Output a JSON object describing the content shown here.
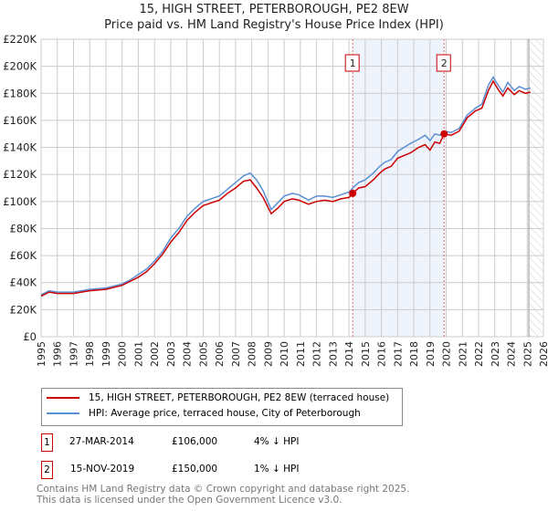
{
  "title_line1": "15, HIGH STREET, PETERBOROUGH, PE2 8EW",
  "title_line2": "Price paid vs. HM Land Registry's House Price Index (HPI)",
  "colors": {
    "property": "#cc0000",
    "hpi": "#5b8fd4",
    "shade": "#eef3fc"
  },
  "chart_data": {
    "type": "line",
    "title": "Price paid vs. HM Land Registry's House Price Index (HPI)",
    "xlim": [
      1995,
      2026
    ],
    "ylim": [
      0,
      220000
    ],
    "x_ticks": [
      "1995",
      "1996",
      "1997",
      "1998",
      "1999",
      "2000",
      "2001",
      "2002",
      "2003",
      "2004",
      "2005",
      "2006",
      "2007",
      "2008",
      "2009",
      "2010",
      "2011",
      "2012",
      "2013",
      "2014",
      "2015",
      "2016",
      "2017",
      "2018",
      "2019",
      "2020",
      "2021",
      "2022",
      "2023",
      "2024",
      "2025",
      "2026"
    ],
    "y_ticks": [
      {
        "v": 0,
        "label": "£0"
      },
      {
        "v": 20000,
        "label": "£20K"
      },
      {
        "v": 40000,
        "label": "£40K"
      },
      {
        "v": 60000,
        "label": "£60K"
      },
      {
        "v": 80000,
        "label": "£80K"
      },
      {
        "v": 100000,
        "label": "£100K"
      },
      {
        "v": 120000,
        "label": "£120K"
      },
      {
        "v": 140000,
        "label": "£140K"
      },
      {
        "v": 160000,
        "label": "£160K"
      },
      {
        "v": 180000,
        "label": "£180K"
      },
      {
        "v": 200000,
        "label": "£200K"
      },
      {
        "v": 220000,
        "label": "£220K"
      }
    ],
    "grid": true,
    "series": [
      {
        "name": "15, HIGH STREET, PETERBOROUGH, PE2 8EW (terraced house)",
        "color": "#cc0000",
        "x": [
          1995,
          1995.5,
          1996,
          1997,
          1998,
          1999,
          2000,
          2000.5,
          2001,
          2001.5,
          2002,
          2002.5,
          2003,
          2003.5,
          2004,
          2004.5,
          2005,
          2006,
          2006.5,
          2007,
          2007.5,
          2007.9,
          2008.3,
          2008.7,
          2009.2,
          2009.6,
          2010,
          2010.5,
          2010.9,
          2011.5,
          2012,
          2012.5,
          2013,
          2013.5,
          2014,
          2014.23,
          2014.6,
          2015,
          2015.5,
          2015.9,
          2016.2,
          2016.6,
          2017,
          2017.4,
          2017.8,
          2018.3,
          2018.7,
          2019,
          2019.3,
          2019.6,
          2019.87,
          2020.3,
          2020.8,
          2021.3,
          2021.8,
          2022.2,
          2022.6,
          2022.9,
          2023.2,
          2023.5,
          2023.8,
          2024.2,
          2024.5,
          2024.9,
          2025.2
        ],
        "y": [
          30000,
          33000,
          32000,
          32000,
          34000,
          35000,
          38000,
          41000,
          44000,
          48000,
          54000,
          61000,
          70000,
          77000,
          86000,
          92000,
          97000,
          101000,
          106000,
          110000,
          115000,
          116000,
          110000,
          103000,
          91000,
          95000,
          100000,
          102000,
          101000,
          98000,
          100000,
          101000,
          100000,
          102000,
          103000,
          106000,
          110000,
          111000,
          116000,
          121000,
          124000,
          126000,
          132000,
          134000,
          136000,
          140000,
          142000,
          138000,
          144000,
          143000,
          150000,
          149000,
          152000,
          162000,
          167000,
          169000,
          182000,
          189000,
          183000,
          178000,
          184000,
          179000,
          182000,
          180000,
          181000
        ]
      },
      {
        "name": "HPI: Average price, terraced house, City of Peterborough",
        "color": "#5b8fd4",
        "x": [
          1995,
          1995.5,
          1996,
          1997,
          1998,
          1999,
          2000,
          2000.5,
          2001,
          2001.5,
          2002,
          2002.5,
          2003,
          2003.5,
          2004,
          2004.5,
          2005,
          2006,
          2006.5,
          2007,
          2007.5,
          2007.9,
          2008.3,
          2008.7,
          2009.2,
          2009.6,
          2010,
          2010.5,
          2010.9,
          2011.5,
          2012,
          2012.5,
          2013,
          2013.5,
          2014,
          2014.23,
          2014.6,
          2015,
          2015.5,
          2015.9,
          2016.2,
          2016.6,
          2017,
          2017.4,
          2017.8,
          2018.3,
          2018.7,
          2019,
          2019.3,
          2019.6,
          2019.87,
          2020.3,
          2020.8,
          2021.3,
          2021.8,
          2022.2,
          2022.6,
          2022.9,
          2023.2,
          2023.5,
          2023.8,
          2024.2,
          2024.5,
          2024.9,
          2025.2
        ],
        "y": [
          31000,
          34000,
          33000,
          33000,
          35000,
          36000,
          39000,
          42000,
          46000,
          50000,
          56000,
          63000,
          73000,
          80000,
          89000,
          95000,
          100000,
          104000,
          109000,
          114000,
          119000,
          121000,
          116000,
          108000,
          94000,
          99000,
          104000,
          106000,
          105000,
          101000,
          104000,
          104000,
          103000,
          105000,
          107000,
          110000,
          114000,
          116000,
          121000,
          126000,
          129000,
          131000,
          137000,
          140000,
          143000,
          146000,
          149000,
          145000,
          150000,
          149000,
          152000,
          151000,
          154000,
          164000,
          169000,
          172000,
          186000,
          192000,
          186000,
          181000,
          188000,
          182000,
          185000,
          183000,
          184000
        ]
      }
    ],
    "transactions": [
      {
        "label": "1",
        "x": 2014.23,
        "y": 106000
      },
      {
        "label": "2",
        "x": 2019.87,
        "y": 150000
      }
    ],
    "future_hatch_from": 2025.1
  },
  "legend": {
    "property": "15, HIGH STREET, PETERBOROUGH, PE2 8EW (terraced house)",
    "hpi": "HPI: Average price, terraced house, City of Peterborough"
  },
  "table": [
    {
      "num": "1",
      "date": "27-MAR-2014",
      "price": "£106,000",
      "delta": "4% ↓ HPI"
    },
    {
      "num": "2",
      "date": "15-NOV-2019",
      "price": "£150,000",
      "delta": "1% ↓ HPI"
    }
  ],
  "footer": [
    "Contains HM Land Registry data © Crown copyright and database right 2025.",
    "This data is licensed under the Open Government Licence v3.0."
  ]
}
